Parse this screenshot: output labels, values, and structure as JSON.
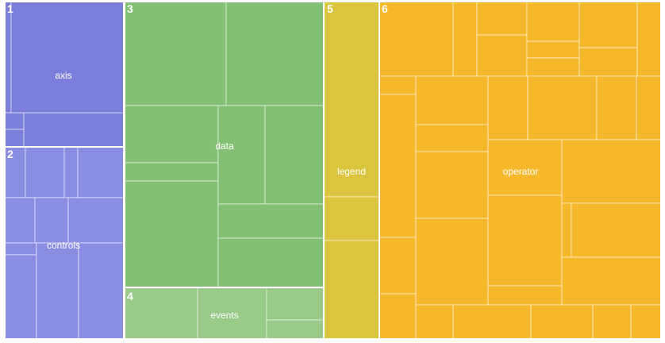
{
  "chart_data": {
    "type": "treemap",
    "groups": [
      {
        "number": "1",
        "name": "axis",
        "color": "#7b7fdb"
      },
      {
        "number": "2",
        "name": "controls",
        "color": "#8a8ee3"
      },
      {
        "number": "3",
        "name": "data",
        "color": "#83c073"
      },
      {
        "number": "4",
        "name": "events",
        "color": "#99ca8a"
      },
      {
        "number": "5",
        "name": "legend",
        "color": "#dbc53e"
      },
      {
        "number": "6",
        "name": "operator",
        "color": "#f5b82b"
      }
    ]
  }
}
